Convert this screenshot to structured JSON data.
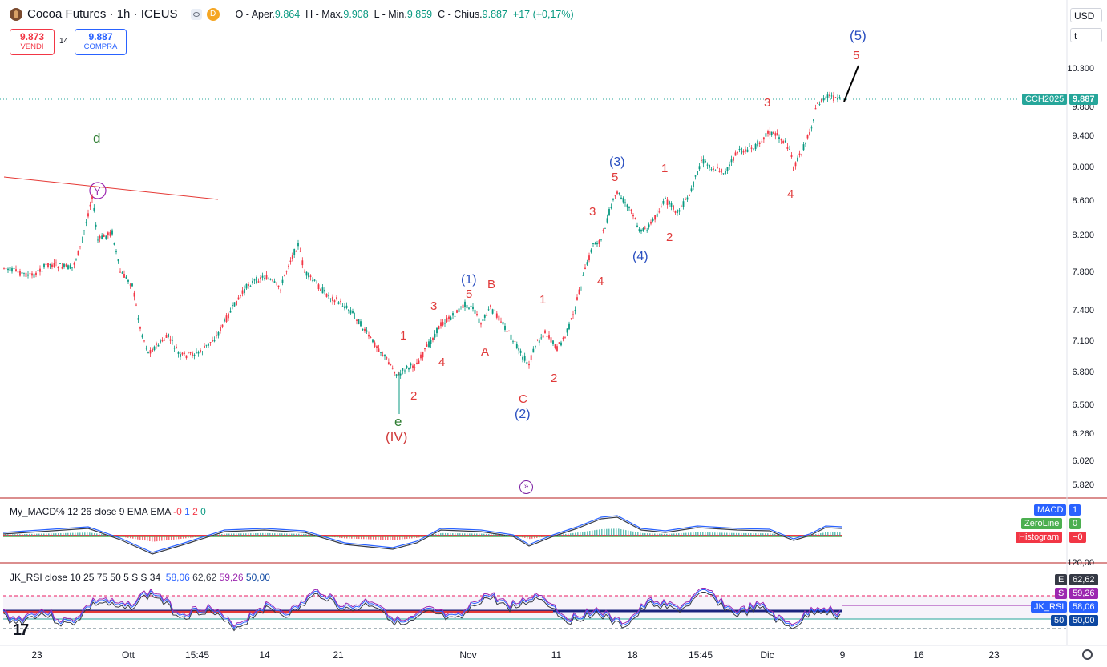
{
  "header": {
    "title": "Cocoa Futures · 1h · ICEUS",
    "icon_names": [
      "cocoa-logo-icon",
      "eye-icon",
      "delayed-badge-icon"
    ],
    "delayed_badge": "D",
    "ohlc": {
      "open_label": "O - Aper.",
      "open": "9.864",
      "high_label": "H - Max.",
      "high": "9.908",
      "low_label": "L - Min.",
      "low": "9.859",
      "close_label": "C - Chius.",
      "close": "9.887",
      "change": "+17 (+0,17%)"
    }
  },
  "trade": {
    "sell_price": "9.873",
    "sell_label": "VENDI",
    "spread": "14",
    "buy_price": "9.887",
    "buy_label": "COMPRA"
  },
  "right_panel": {
    "currency": "USD",
    "unit": "t",
    "price_axis": [
      "10.300",
      "9.800",
      "9.400",
      "9.000",
      "8.600",
      "8.200",
      "7.800",
      "7.400",
      "7.100",
      "6.800",
      "6.500",
      "6.260",
      "6.020",
      "5.820"
    ],
    "symbol_tag": "CCH2025",
    "symbol_price": "9.887"
  },
  "wave_labels": {
    "top_5_blue": "(5)",
    "top_5_red": "5",
    "d": "d",
    "y": "Y",
    "w3_a": "3",
    "w4_a": "4",
    "w3_blue": "(3)",
    "w5_a": "5",
    "w1_a": "1",
    "w3_b": "3",
    "w2_a": "2",
    "w4_blue": "(4)",
    "w4_b": "4",
    "w1_b": "1",
    "w1_blue": "(1)",
    "w5_b": "5",
    "wB": "B",
    "w3_c": "3",
    "wA": "A",
    "w1_c": "1",
    "w4_c": "4",
    "w2_b": "2",
    "wC": "C",
    "w2_blue": "(2)",
    "w2_c": "2",
    "e": "e",
    "IV": "(IV)"
  },
  "macd": {
    "title": "My_MACD% 12 26 close 9 EMA EMA",
    "v1": "-0",
    "v2": "1",
    "v3": "2",
    "v4": "0",
    "tags": [
      {
        "label": "MACD",
        "value": "1",
        "color": "#2962ff"
      },
      {
        "label": "ZeroLine",
        "value": "0",
        "color": "#4caf50"
      },
      {
        "label": "Histogram",
        "value": "−0",
        "color": "#f23645"
      }
    ]
  },
  "rsi": {
    "title": "JK_RSI close 10 25 75 50 5 S S 34",
    "values": [
      "58,06",
      "62,62",
      "59,26",
      "50,00"
    ],
    "axis_top": "120,00",
    "tags": [
      {
        "label": "E",
        "value": "62,62",
        "color": "#363a45"
      },
      {
        "label": "S",
        "value": "59,26",
        "color": "#9c27b0"
      },
      {
        "label": "JK_RSI",
        "value": "58,06",
        "color": "#2962ff"
      },
      {
        "label": "50",
        "value": "50,00",
        "color": "#0d47a1"
      }
    ]
  },
  "time_axis": [
    {
      "label": "23",
      "x": "23"
    },
    {
      "label": "Ott"
    },
    {
      "label": "15:45"
    },
    {
      "label": "14"
    },
    {
      "label": "21"
    },
    {
      "label": "Nov"
    },
    {
      "label": "11"
    },
    {
      "label": "18"
    },
    {
      "label": "15:45"
    },
    {
      "label": "Dic"
    },
    {
      "label": "9"
    },
    {
      "label": "16"
    },
    {
      "label": "23"
    }
  ],
  "colors": {
    "up": "#089981",
    "down": "#f23645",
    "wave_red": "#e03a3a",
    "wave_blue": "#2a4fc0",
    "wave_green": "#2e7d32",
    "tag": "#26a69a"
  }
}
